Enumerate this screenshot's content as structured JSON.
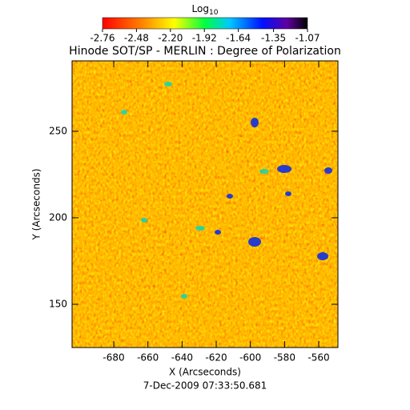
{
  "chart_data": {
    "type": "heatmap",
    "title": "Hinode SOT/SP - MERLIN : Degree of Polarization",
    "colorbar": {
      "label": "Log",
      "label_subscript": "10",
      "lim": [
        -2.76,
        -1.07
      ],
      "ticks": [
        -2.76,
        -2.48,
        {
          "value": -2.2,
          "label": "-2.20"
        },
        -1.92,
        -1.64,
        -1.35,
        -1.07
      ]
    },
    "xlabel": "X (Arcseconds)",
    "ylabel": "Y (Arcseconds)",
    "xlim": [
      -704.4,
      -548.75
    ],
    "xticks": [
      -680,
      -660,
      -640,
      -620,
      -600,
      -580,
      -560
    ],
    "ylim": [
      125,
      290.7
    ],
    "yticks": [
      150,
      200,
      250
    ],
    "annotation": "7-Dec-2009 07:33:50.681"
  }
}
